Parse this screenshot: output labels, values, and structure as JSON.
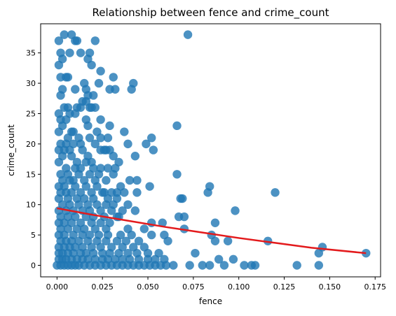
{
  "chart_data": {
    "type": "scatter",
    "title": "Relationship between fence and crime_count",
    "xlabel": "fence",
    "ylabel": "crime_count",
    "xlim": [
      -0.009,
      0.178
    ],
    "ylim": [
      -1.9,
      39.8
    ],
    "x_ticks": [
      0.0,
      0.025,
      0.05,
      0.075,
      0.1,
      0.125,
      0.15,
      0.175
    ],
    "x_tick_labels": [
      "0.000",
      "0.025",
      "0.050",
      "0.075",
      "0.100",
      "0.125",
      "0.150",
      "0.175"
    ],
    "y_ticks": [
      0,
      5,
      10,
      15,
      20,
      25,
      30,
      35
    ],
    "y_tick_labels": [
      "0",
      "5",
      "10",
      "15",
      "20",
      "25",
      "30",
      "35"
    ],
    "grid": false,
    "legend": "none",
    "colors": {
      "points": "#1f77b4",
      "fit_line": "#e31a1c",
      "axes": "#000000"
    },
    "series": [
      {
        "type": "scatter",
        "values": [
          [
            0.004,
            38
          ],
          [
            0.008,
            38
          ],
          [
            0.072,
            38
          ],
          [
            0.001,
            37
          ],
          [
            0.011,
            37
          ],
          [
            0.01,
            37
          ],
          [
            0.021,
            37
          ],
          [
            0.002,
            35
          ],
          [
            0.007,
            35
          ],
          [
            0.013,
            35
          ],
          [
            0.018,
            35
          ],
          [
            0.003,
            34
          ],
          [
            0.017,
            34
          ],
          [
            0.001,
            33
          ],
          [
            0.019,
            33
          ],
          [
            0.002,
            31
          ],
          [
            0.005,
            31
          ],
          [
            0.006,
            31
          ],
          [
            0.024,
            32
          ],
          [
            0.031,
            31
          ],
          [
            0.042,
            30
          ],
          [
            0.003,
            29
          ],
          [
            0.01,
            29
          ],
          [
            0.015,
            30
          ],
          [
            0.016,
            29
          ],
          [
            0.023,
            30
          ],
          [
            0.029,
            29
          ],
          [
            0.032,
            29
          ],
          [
            0.041,
            29
          ],
          [
            0.002,
            28
          ],
          [
            0.017,
            28
          ],
          [
            0.02,
            28
          ],
          [
            0.014,
            27
          ],
          [
            0.016,
            27
          ],
          [
            0.018,
            26
          ],
          [
            0.019,
            26
          ],
          [
            0.021,
            26
          ],
          [
            0.001,
            25
          ],
          [
            0.004,
            26
          ],
          [
            0.006,
            26
          ],
          [
            0.011,
            26
          ],
          [
            0.013,
            26
          ],
          [
            0.016,
            24
          ],
          [
            0.002,
            24
          ],
          [
            0.005,
            24
          ],
          [
            0.007,
            25
          ],
          [
            0.01,
            25
          ],
          [
            0.024,
            24
          ],
          [
            0.003,
            23
          ],
          [
            0.008,
            22
          ],
          [
            0.017,
            23
          ],
          [
            0.022,
            22
          ],
          [
            0.029,
            23
          ],
          [
            0.037,
            22
          ],
          [
            0.066,
            23
          ],
          [
            0.001,
            22
          ],
          [
            0.006,
            21
          ],
          [
            0.009,
            22
          ],
          [
            0.012,
            21
          ],
          [
            0.018,
            21
          ],
          [
            0.024,
            21
          ],
          [
            0.028,
            21
          ],
          [
            0.052,
            21
          ],
          [
            0.002,
            20
          ],
          [
            0.005,
            20
          ],
          [
            0.009,
            20
          ],
          [
            0.013,
            20
          ],
          [
            0.021,
            20
          ],
          [
            0.026,
            19
          ],
          [
            0.029,
            19
          ],
          [
            0.039,
            20
          ],
          [
            0.049,
            20
          ],
          [
            0.001,
            19
          ],
          [
            0.004,
            19
          ],
          [
            0.007,
            19
          ],
          [
            0.014,
            19
          ],
          [
            0.017,
            18
          ],
          [
            0.024,
            19
          ],
          [
            0.027,
            19
          ],
          [
            0.043,
            18
          ],
          [
            0.053,
            19
          ],
          [
            0.003,
            18
          ],
          [
            0.008,
            18
          ],
          [
            0.011,
            17
          ],
          [
            0.016,
            17
          ],
          [
            0.019,
            17
          ],
          [
            0.031,
            18
          ],
          [
            0.034,
            17
          ],
          [
            0.001,
            17
          ],
          [
            0.005,
            16
          ],
          [
            0.01,
            16
          ],
          [
            0.013,
            16
          ],
          [
            0.02,
            16
          ],
          [
            0.024,
            16
          ],
          [
            0.028,
            16
          ],
          [
            0.032,
            16
          ],
          [
            0.002,
            15
          ],
          [
            0.006,
            15
          ],
          [
            0.012,
            15
          ],
          [
            0.018,
            15
          ],
          [
            0.023,
            15
          ],
          [
            0.031,
            15
          ],
          [
            0.04,
            14
          ],
          [
            0.066,
            15
          ],
          [
            0.003,
            14
          ],
          [
            0.007,
            14
          ],
          [
            0.009,
            14
          ],
          [
            0.015,
            14
          ],
          [
            0.021,
            14
          ],
          [
            0.027,
            14
          ],
          [
            0.035,
            13
          ],
          [
            0.044,
            14
          ],
          [
            0.001,
            13
          ],
          [
            0.004,
            13
          ],
          [
            0.01,
            13
          ],
          [
            0.016,
            13
          ],
          [
            0.022,
            13
          ],
          [
            0.026,
            12
          ],
          [
            0.033,
            12
          ],
          [
            0.051,
            13
          ],
          [
            0.084,
            13
          ],
          [
            0.002,
            12
          ],
          [
            0.005,
            12
          ],
          [
            0.008,
            12
          ],
          [
            0.013,
            12
          ],
          [
            0.019,
            12
          ],
          [
            0.025,
            12
          ],
          [
            0.03,
            12
          ],
          [
            0.037,
            12
          ],
          [
            0.044,
            12
          ],
          [
            0.083,
            12
          ],
          [
            0.12,
            12
          ],
          [
            0.001,
            11
          ],
          [
            0.006,
            11
          ],
          [
            0.011,
            11
          ],
          [
            0.015,
            11
          ],
          [
            0.02,
            11
          ],
          [
            0.028,
            11
          ],
          [
            0.033,
            11
          ],
          [
            0.068,
            11
          ],
          [
            0.069,
            11
          ],
          [
            0.003,
            10
          ],
          [
            0.007,
            10
          ],
          [
            0.012,
            10
          ],
          [
            0.017,
            10
          ],
          [
            0.022,
            10
          ],
          [
            0.027,
            10
          ],
          [
            0.031,
            10
          ],
          [
            0.039,
            10
          ],
          [
            0.001,
            9
          ],
          [
            0.005,
            9
          ],
          [
            0.009,
            9
          ],
          [
            0.014,
            9
          ],
          [
            0.018,
            9
          ],
          [
            0.024,
            9
          ],
          [
            0.03,
            9
          ],
          [
            0.036,
            9
          ],
          [
            0.043,
            9
          ],
          [
            0.098,
            9
          ],
          [
            0.002,
            8
          ],
          [
            0.006,
            8
          ],
          [
            0.01,
            8
          ],
          [
            0.016,
            8
          ],
          [
            0.02,
            8
          ],
          [
            0.026,
            8
          ],
          [
            0.033,
            8
          ],
          [
            0.034,
            8
          ],
          [
            0.067,
            8
          ],
          [
            0.07,
            8
          ],
          [
            0.001,
            7
          ],
          [
            0.004,
            7
          ],
          [
            0.008,
            7
          ],
          [
            0.013,
            7
          ],
          [
            0.019,
            7
          ],
          [
            0.024,
            7
          ],
          [
            0.029,
            7
          ],
          [
            0.052,
            7
          ],
          [
            0.058,
            7
          ],
          [
            0.087,
            7
          ],
          [
            0.002,
            6
          ],
          [
            0.006,
            6
          ],
          [
            0.011,
            6
          ],
          [
            0.015,
            6
          ],
          [
            0.021,
            6
          ],
          [
            0.027,
            6
          ],
          [
            0.039,
            6
          ],
          [
            0.048,
            6
          ],
          [
            0.07,
            6
          ],
          [
            0.001,
            5
          ],
          [
            0.004,
            5
          ],
          [
            0.009,
            5
          ],
          [
            0.014,
            5
          ],
          [
            0.018,
            5
          ],
          [
            0.023,
            5
          ],
          [
            0.028,
            5
          ],
          [
            0.035,
            5
          ],
          [
            0.041,
            5
          ],
          [
            0.052,
            5
          ],
          [
            0.059,
            5
          ],
          [
            0.085,
            5
          ],
          [
            0.002,
            4
          ],
          [
            0.005,
            4
          ],
          [
            0.008,
            4
          ],
          [
            0.012,
            4
          ],
          [
            0.017,
            4
          ],
          [
            0.022,
            4
          ],
          [
            0.027,
            4
          ],
          [
            0.033,
            4
          ],
          [
            0.038,
            4
          ],
          [
            0.045,
            4
          ],
          [
            0.061,
            4
          ],
          [
            0.087,
            4
          ],
          [
            0.094,
            4
          ],
          [
            0.116,
            4
          ],
          [
            0.001,
            3
          ],
          [
            0.004,
            3
          ],
          [
            0.007,
            3
          ],
          [
            0.01,
            3
          ],
          [
            0.014,
            3
          ],
          [
            0.019,
            3
          ],
          [
            0.024,
            3
          ],
          [
            0.03,
            3
          ],
          [
            0.036,
            3
          ],
          [
            0.042,
            3
          ],
          [
            0.048,
            3
          ],
          [
            0.146,
            3
          ],
          [
            0.001,
            2
          ],
          [
            0.003,
            2
          ],
          [
            0.006,
            2
          ],
          [
            0.009,
            2
          ],
          [
            0.013,
            2
          ],
          [
            0.016,
            2
          ],
          [
            0.02,
            2
          ],
          [
            0.025,
            2
          ],
          [
            0.029,
            2
          ],
          [
            0.034,
            2
          ],
          [
            0.039,
            2
          ],
          [
            0.044,
            2
          ],
          [
            0.05,
            2
          ],
          [
            0.056,
            2
          ],
          [
            0.076,
            2
          ],
          [
            0.144,
            2
          ],
          [
            0.17,
            2
          ],
          [
            0.001,
            1
          ],
          [
            0.003,
            1
          ],
          [
            0.005,
            1
          ],
          [
            0.008,
            1
          ],
          [
            0.011,
            1
          ],
          [
            0.014,
            1
          ],
          [
            0.017,
            1
          ],
          [
            0.021,
            1
          ],
          [
            0.025,
            1
          ],
          [
            0.028,
            1
          ],
          [
            0.032,
            1
          ],
          [
            0.036,
            1
          ],
          [
            0.04,
            1
          ],
          [
            0.045,
            1
          ],
          [
            0.05,
            1
          ],
          [
            0.054,
            1
          ],
          [
            0.059,
            1
          ],
          [
            0.089,
            1
          ],
          [
            0.097,
            1
          ],
          [
            0.0,
            0
          ],
          [
            0.002,
            0
          ],
          [
            0.004,
            0
          ],
          [
            0.006,
            0
          ],
          [
            0.008,
            0
          ],
          [
            0.01,
            0
          ],
          [
            0.012,
            0
          ],
          [
            0.015,
            0
          ],
          [
            0.018,
            0
          ],
          [
            0.021,
            0
          ],
          [
            0.024,
            0
          ],
          [
            0.027,
            0
          ],
          [
            0.03,
            0
          ],
          [
            0.033,
            0
          ],
          [
            0.036,
            0
          ],
          [
            0.039,
            0
          ],
          [
            0.042,
            0
          ],
          [
            0.045,
            0
          ],
          [
            0.048,
            0
          ],
          [
            0.051,
            0
          ],
          [
            0.054,
            0
          ],
          [
            0.057,
            0
          ],
          [
            0.06,
            0
          ],
          [
            0.064,
            0
          ],
          [
            0.073,
            0
          ],
          [
            0.08,
            0
          ],
          [
            0.084,
            0
          ],
          [
            0.092,
            0
          ],
          [
            0.103,
            0
          ],
          [
            0.107,
            0
          ],
          [
            0.109,
            0
          ],
          [
            0.132,
            0
          ],
          [
            0.144,
            0
          ]
        ]
      },
      {
        "type": "line",
        "x": [
          0.0,
          0.02,
          0.04,
          0.06,
          0.08,
          0.1,
          0.12,
          0.14,
          0.17
        ],
        "y": [
          9.4,
          8.3,
          7.3,
          6.3,
          5.4,
          4.5,
          3.7,
          2.9,
          2.0
        ]
      }
    ]
  }
}
